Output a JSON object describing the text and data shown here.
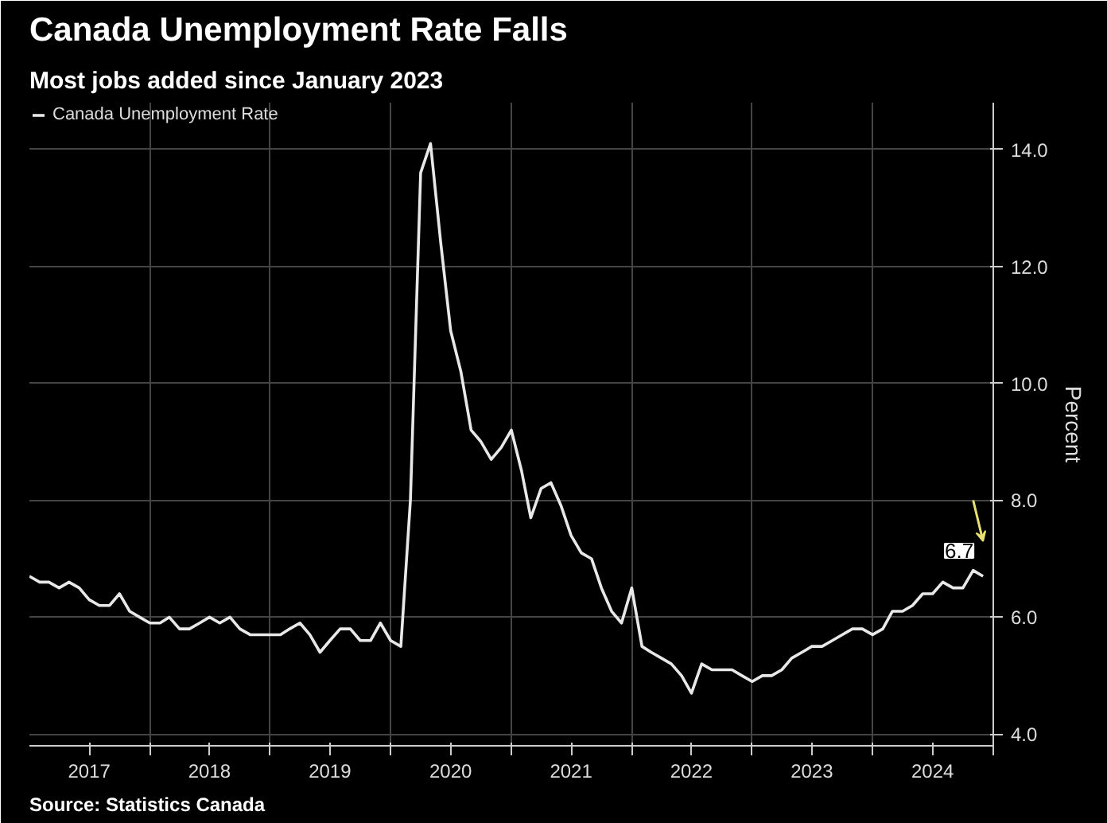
{
  "chart_data": {
    "type": "line",
    "title": "Canada Unemployment Rate Falls",
    "subtitle": "Most jobs added since January 2023",
    "ylabel": "Percent",
    "x": [
      "2017-01",
      "2017-02",
      "2017-03",
      "2017-04",
      "2017-05",
      "2017-06",
      "2017-07",
      "2017-08",
      "2017-09",
      "2017-10",
      "2017-11",
      "2017-12",
      "2018-01",
      "2018-02",
      "2018-03",
      "2018-04",
      "2018-05",
      "2018-06",
      "2018-07",
      "2018-08",
      "2018-09",
      "2018-10",
      "2018-11",
      "2018-12",
      "2019-01",
      "2019-02",
      "2019-03",
      "2019-04",
      "2019-05",
      "2019-06",
      "2019-07",
      "2019-08",
      "2019-09",
      "2019-10",
      "2019-11",
      "2019-12",
      "2020-01",
      "2020-02",
      "2020-03",
      "2020-04",
      "2020-05",
      "2020-06",
      "2020-07",
      "2020-08",
      "2020-09",
      "2020-10",
      "2020-11",
      "2020-12",
      "2021-01",
      "2021-02",
      "2021-03",
      "2021-04",
      "2021-05",
      "2021-06",
      "2021-07",
      "2021-08",
      "2021-09",
      "2021-10",
      "2021-11",
      "2021-12",
      "2022-01",
      "2022-02",
      "2022-03",
      "2022-04",
      "2022-05",
      "2022-06",
      "2022-07",
      "2022-08",
      "2022-09",
      "2022-10",
      "2022-11",
      "2022-12",
      "2023-01",
      "2023-02",
      "2023-03",
      "2023-04",
      "2023-05",
      "2023-06",
      "2023-07",
      "2023-08",
      "2023-09",
      "2023-10",
      "2023-11",
      "2023-12",
      "2024-01",
      "2024-02",
      "2024-03",
      "2024-04",
      "2024-05",
      "2024-06",
      "2024-07",
      "2024-08",
      "2024-09",
      "2024-10",
      "2024-11",
      "2024-12"
    ],
    "series": [
      {
        "name": "Canada Unemployment Rate",
        "color": "#e8e8e8",
        "values": [
          6.7,
          6.6,
          6.6,
          6.5,
          6.6,
          6.5,
          6.3,
          6.2,
          6.2,
          6.4,
          6.1,
          6.0,
          5.9,
          5.9,
          6.0,
          5.8,
          5.8,
          5.9,
          6.0,
          5.9,
          6.0,
          5.8,
          5.7,
          5.7,
          5.7,
          5.7,
          5.8,
          5.9,
          5.7,
          5.4,
          5.6,
          5.8,
          5.8,
          5.6,
          5.6,
          5.9,
          5.6,
          5.5,
          8.0,
          13.6,
          14.1,
          12.4,
          10.9,
          10.2,
          9.2,
          9.0,
          8.7,
          8.9,
          9.2,
          8.5,
          7.7,
          8.2,
          8.3,
          7.9,
          7.4,
          7.1,
          7.0,
          6.5,
          6.1,
          5.9,
          6.5,
          5.5,
          5.4,
          5.3,
          5.2,
          5.0,
          4.7,
          5.2,
          5.1,
          5.1,
          5.1,
          5.0,
          4.9,
          5.0,
          5.0,
          5.1,
          5.3,
          5.4,
          5.5,
          5.5,
          5.6,
          5.7,
          5.8,
          5.8,
          5.7,
          5.8,
          6.1,
          6.1,
          6.2,
          6.4,
          6.4,
          6.6,
          6.5,
          6.5,
          6.8,
          6.7
        ]
      }
    ],
    "xlim": [
      "2017-01",
      "2025-01"
    ],
    "xticks": [
      {
        "value": "2017-07",
        "label": "2017"
      },
      {
        "value": "2018-01",
        "label": null
      },
      {
        "value": "2018-07",
        "label": "2018"
      },
      {
        "value": "2019-01",
        "label": null
      },
      {
        "value": "2019-07",
        "label": "2019"
      },
      {
        "value": "2020-01",
        "label": null
      },
      {
        "value": "2020-07",
        "label": "2020"
      },
      {
        "value": "2021-01",
        "label": null
      },
      {
        "value": "2021-07",
        "label": "2021"
      },
      {
        "value": "2022-01",
        "label": null
      },
      {
        "value": "2022-07",
        "label": "2022"
      },
      {
        "value": "2023-01",
        "label": null
      },
      {
        "value": "2023-07",
        "label": "2023"
      },
      {
        "value": "2024-01",
        "label": null
      },
      {
        "value": "2024-07",
        "label": "2024"
      },
      {
        "value": "2025-01",
        "label": null
      }
    ],
    "ylim": [
      3.8,
      14.8
    ],
    "yticks": [
      {
        "value": 4,
        "label": "4.0"
      },
      {
        "value": 6,
        "label": "6.0"
      },
      {
        "value": 8,
        "label": "8.0"
      },
      {
        "value": 10,
        "label": "10.0"
      },
      {
        "value": 12,
        "label": "12.0"
      },
      {
        "value": 14,
        "label": "14.0"
      }
    ],
    "annotations": [
      {
        "text": "6.7",
        "x": "2024-12",
        "y": 6.7
      },
      "Source: Statistics Canada"
    ],
    "grid": true,
    "legend": "top left",
    "marker": "none",
    "line_style": "solid"
  }
}
